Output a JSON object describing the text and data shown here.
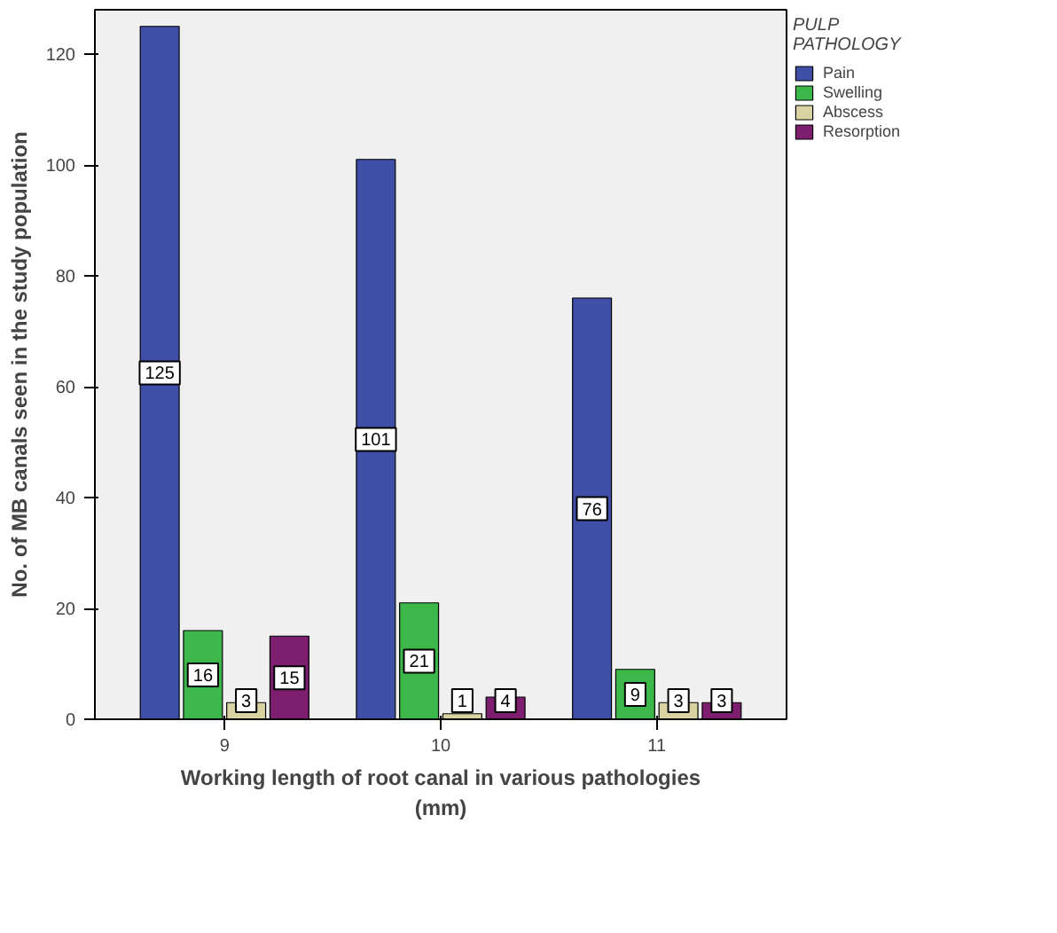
{
  "chart_data": {
    "type": "bar",
    "xlabel": "Working length of root canal in various pathologies\n(mm)",
    "ylabel": "No. of MB canals seen in the study population",
    "legend_title": "PULP\nPATHOLOGY",
    "categories": [
      "9",
      "10",
      "11"
    ],
    "series": [
      {
        "name": "Pain",
        "color": "#3f4fa8",
        "values": [
          125,
          101,
          76
        ]
      },
      {
        "name": "Swelling",
        "color": "#3cb84a",
        "values": [
          16,
          21,
          9
        ]
      },
      {
        "name": "Abscess",
        "color": "#d8d3a0",
        "values": [
          3,
          1,
          3
        ]
      },
      {
        "name": "Resorption",
        "color": "#7d1f6e",
        "values": [
          15,
          4,
          3
        ]
      }
    ],
    "ylim": [
      0,
      128
    ],
    "yticks": [
      0,
      20,
      40,
      60,
      80,
      100,
      120
    ],
    "grid": false,
    "legend": "right",
    "data_labels": true
  }
}
